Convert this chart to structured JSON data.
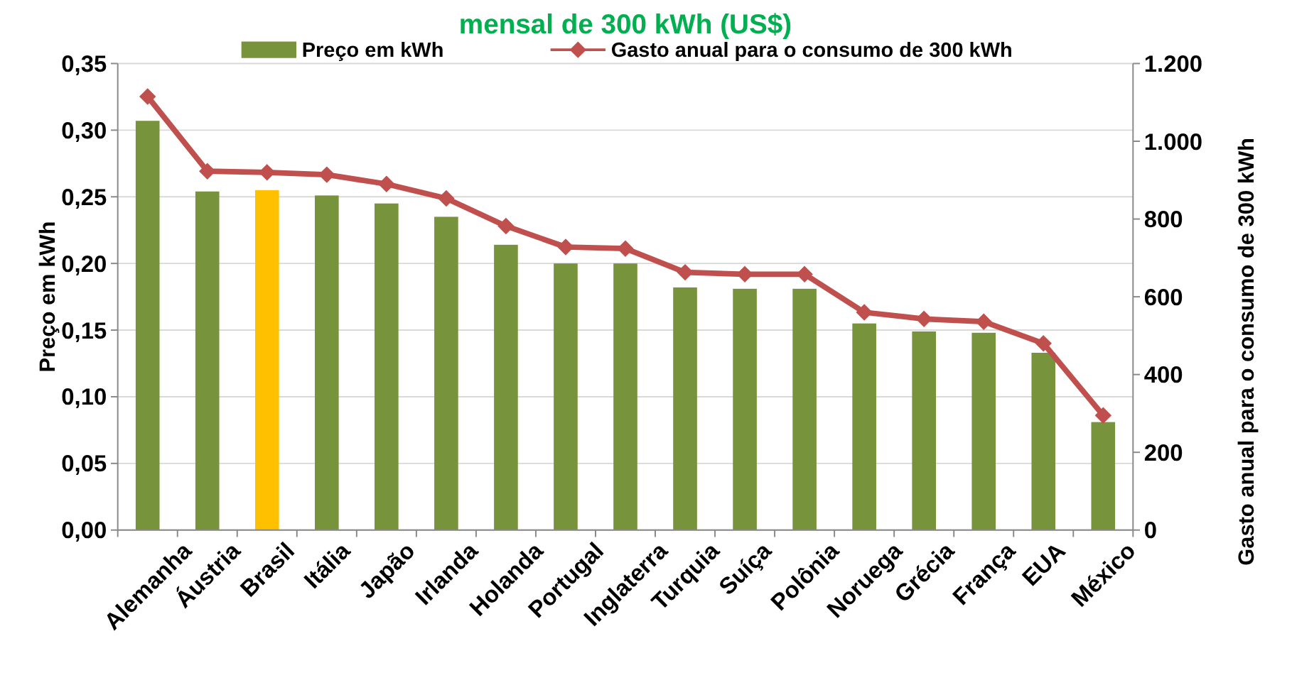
{
  "chart_data": {
    "type": "bar",
    "title": "mensal de 300 kWh (US$)",
    "ylabel": "Preço em kWh",
    "y2label": "Gasto anual para o consumo de 300 kWh",
    "categories": [
      "Alemanha",
      "Áustria",
      "Brasil",
      "Itália",
      "Japão",
      "Irlanda",
      "Holanda",
      "Portugal",
      "Inglaterra",
      "Turquia",
      "Suíça",
      "Polônia",
      "Noruega",
      "Grécia",
      "França",
      "EUA",
      "México"
    ],
    "series": [
      {
        "name": "Preço em kWh",
        "type": "bar",
        "color": "#77933c",
        "colors": [
          "#77933c",
          "#77933c",
          "#ffc000",
          "#77933c",
          "#77933c",
          "#77933c",
          "#77933c",
          "#77933c",
          "#77933c",
          "#77933c",
          "#77933c",
          "#77933c",
          "#77933c",
          "#77933c",
          "#77933c",
          "#77933c",
          "#77933c"
        ],
        "values": [
          0.307,
          0.254,
          0.255,
          0.251,
          0.245,
          0.235,
          0.214,
          0.2,
          0.2,
          0.182,
          0.181,
          0.181,
          0.155,
          0.149,
          0.148,
          0.133,
          0.081
        ]
      },
      {
        "name": "Gasto anual para o consumo de 300 kWh",
        "type": "line",
        "axis": "y2",
        "color": "#c0504d",
        "marker": "diamond",
        "values": [
          1115,
          923,
          920,
          914,
          890,
          853,
          782,
          728,
          724,
          663,
          658,
          658,
          560,
          543,
          536,
          480,
          295
        ]
      }
    ],
    "ylim": [
      0,
      0.35
    ],
    "yticks": [
      {
        "value": 0,
        "label": "0,00"
      },
      {
        "value": 0.05,
        "label": "0,05"
      },
      {
        "value": 0.1,
        "label": "0,10"
      },
      {
        "value": 0.15,
        "label": "0,15"
      },
      {
        "value": 0.2,
        "label": "0,20"
      },
      {
        "value": 0.25,
        "label": "0,25"
      },
      {
        "value": 0.3,
        "label": "0,30"
      },
      {
        "value": 0.35,
        "label": "0,35"
      }
    ],
    "y2lim": [
      0,
      1200
    ],
    "y2ticks": [
      0,
      200,
      400,
      600,
      800,
      {
        "value": 1000,
        "label": "1.000"
      },
      {
        "value": 1200,
        "label": "1.200"
      }
    ],
    "grid": "y",
    "legend": "top"
  }
}
